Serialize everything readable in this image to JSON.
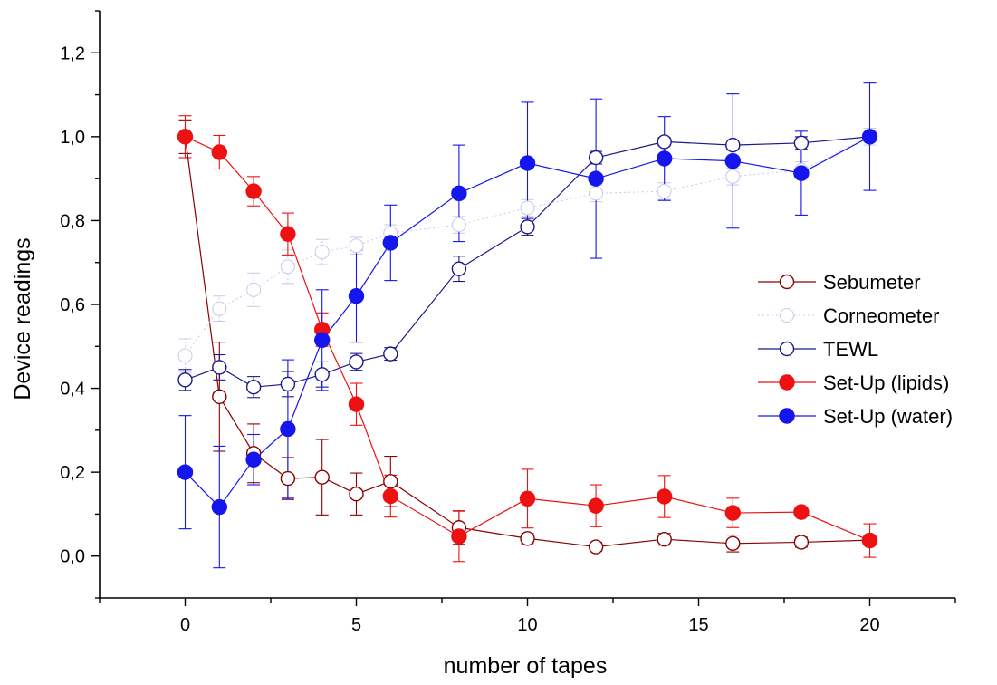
{
  "chart_data": {
    "type": "line",
    "title": "",
    "xlabel": "number of tapes",
    "ylabel": "Device readings",
    "xlim": [
      -2.5,
      22.5
    ],
    "ylim": [
      -0.1,
      1.3
    ],
    "xticks": [
      0,
      5,
      10,
      15,
      20
    ],
    "xtick_labels": [
      "0",
      "5",
      "10",
      "15",
      "20"
    ],
    "yticks": [
      0.0,
      0.2,
      0.4,
      0.6,
      0.8,
      1.0,
      1.2
    ],
    "ytick_labels": [
      "0,0",
      "0,2",
      "0,4",
      "0,6",
      "0,8",
      "1,0",
      "1,2"
    ],
    "grid": false,
    "legend_position": "right",
    "series": [
      {
        "name": "Sebumeter",
        "color": "#8b0000",
        "marker": "open-circle",
        "x": [
          0,
          1,
          2,
          3,
          4,
          5,
          6,
          8,
          10,
          12,
          14,
          16,
          18,
          20
        ],
        "y": [
          1.0,
          0.38,
          0.245,
          0.185,
          0.188,
          0.148,
          0.178,
          0.068,
          0.042,
          0.022,
          0.04,
          0.03,
          0.033,
          0.038
        ],
        "err": [
          0.04,
          0.13,
          0.07,
          0.05,
          0.09,
          0.05,
          0.06,
          0.04,
          0.012,
          0.01,
          0.014,
          0.02,
          0.012,
          0.01
        ]
      },
      {
        "name": "Corneometer",
        "color": "#c8c8e8",
        "marker": "open-circle",
        "dotted": true,
        "x": [
          0,
          1,
          2,
          3,
          4,
          5,
          6,
          8,
          10,
          12,
          14,
          16,
          18,
          20
        ],
        "y": [
          0.478,
          0.59,
          0.635,
          0.69,
          0.725,
          0.74,
          0.77,
          0.79,
          0.83,
          0.865,
          0.87,
          0.905,
          0.92,
          1.0
        ],
        "err": [
          0.04,
          0.03,
          0.04,
          0.04,
          0.03,
          0.02,
          0.02,
          0.02,
          0.02,
          0.02,
          0.02,
          0.02,
          0.02,
          0.02
        ]
      },
      {
        "name": "TEWL",
        "color": "#1a1a8c",
        "marker": "open-circle",
        "x": [
          0,
          1,
          2,
          3,
          4,
          5,
          6,
          8,
          10,
          12,
          14,
          16,
          18,
          20
        ],
        "y": [
          0.42,
          0.45,
          0.403,
          0.41,
          0.433,
          0.463,
          0.482,
          0.685,
          0.785,
          0.95,
          0.988,
          0.98,
          0.985,
          1.0
        ],
        "err": [
          0.025,
          0.03,
          0.025,
          0.03,
          0.03,
          0.02,
          0.015,
          0.03,
          0.02,
          0.015,
          0.01,
          0.012,
          0.015,
          0.01
        ]
      },
      {
        "name": "Set-Up (lipids)",
        "color": "#ee1111",
        "marker": "filled-circle",
        "x": [
          0,
          1,
          2,
          3,
          4,
          5,
          6,
          8,
          10,
          12,
          14,
          16,
          18,
          20
        ],
        "y": [
          1.0,
          0.963,
          0.87,
          0.768,
          0.54,
          0.362,
          0.143,
          0.047,
          0.137,
          0.12,
          0.142,
          0.103,
          0.105,
          0.037
        ],
        "err": [
          0.05,
          0.04,
          0.035,
          0.05,
          0.04,
          0.05,
          0.05,
          0.06,
          0.07,
          0.05,
          0.05,
          0.035,
          0.01,
          0.04
        ]
      },
      {
        "name": "Set-Up (water)",
        "color": "#1515ee",
        "marker": "filled-circle",
        "x": [
          0,
          1,
          2,
          3,
          4,
          5,
          6,
          8,
          10,
          12,
          14,
          16,
          18,
          20
        ],
        "y": [
          0.2,
          0.117,
          0.23,
          0.303,
          0.515,
          0.62,
          0.747,
          0.865,
          0.937,
          0.9,
          0.948,
          0.942,
          0.913,
          1.0
        ],
        "err": [
          0.135,
          0.145,
          0.06,
          0.165,
          0.12,
          0.11,
          0.09,
          0.115,
          0.145,
          0.19,
          0.1,
          0.16,
          0.1,
          0.128
        ]
      }
    ]
  }
}
